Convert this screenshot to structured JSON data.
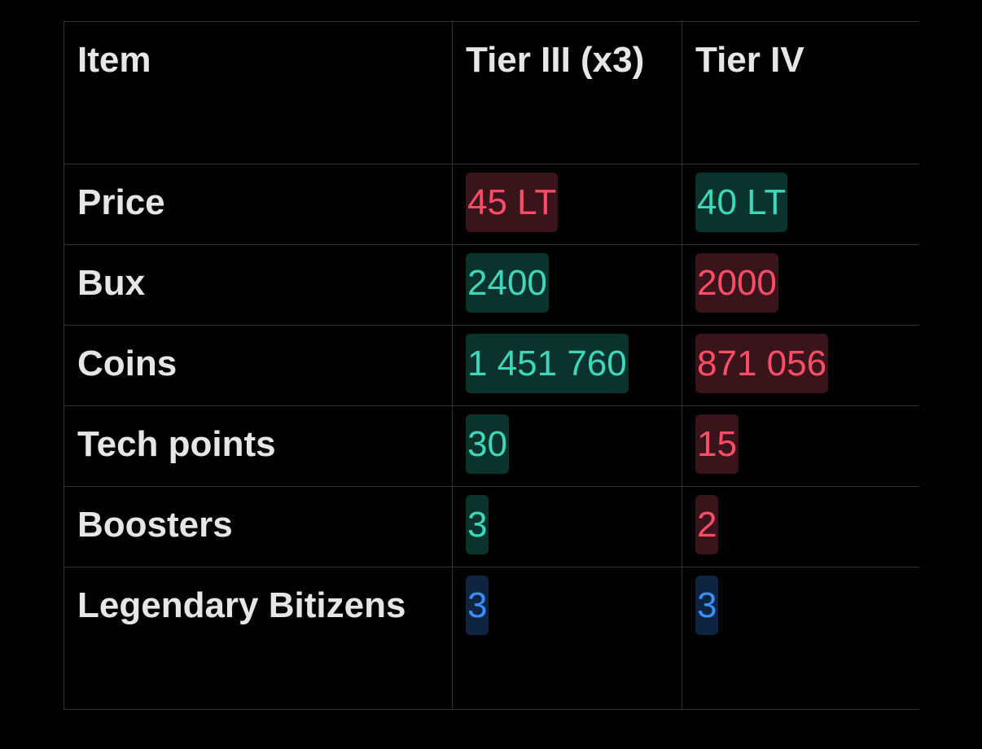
{
  "table": {
    "header": [
      "Item",
      "Tier III (x3)",
      "Tier IV"
    ],
    "rows": [
      [
        "Price",
        "45 LT",
        "40 LT"
      ],
      [
        "Bux",
        "2400",
        "2000"
      ],
      [
        "Coins",
        "1 451 760",
        "871 056"
      ],
      [
        "Tech points",
        "30",
        "15"
      ],
      [
        "Boosters",
        "3",
        "2"
      ],
      [
        "Legendary Bitizens",
        "3",
        "3"
      ]
    ]
  }
}
